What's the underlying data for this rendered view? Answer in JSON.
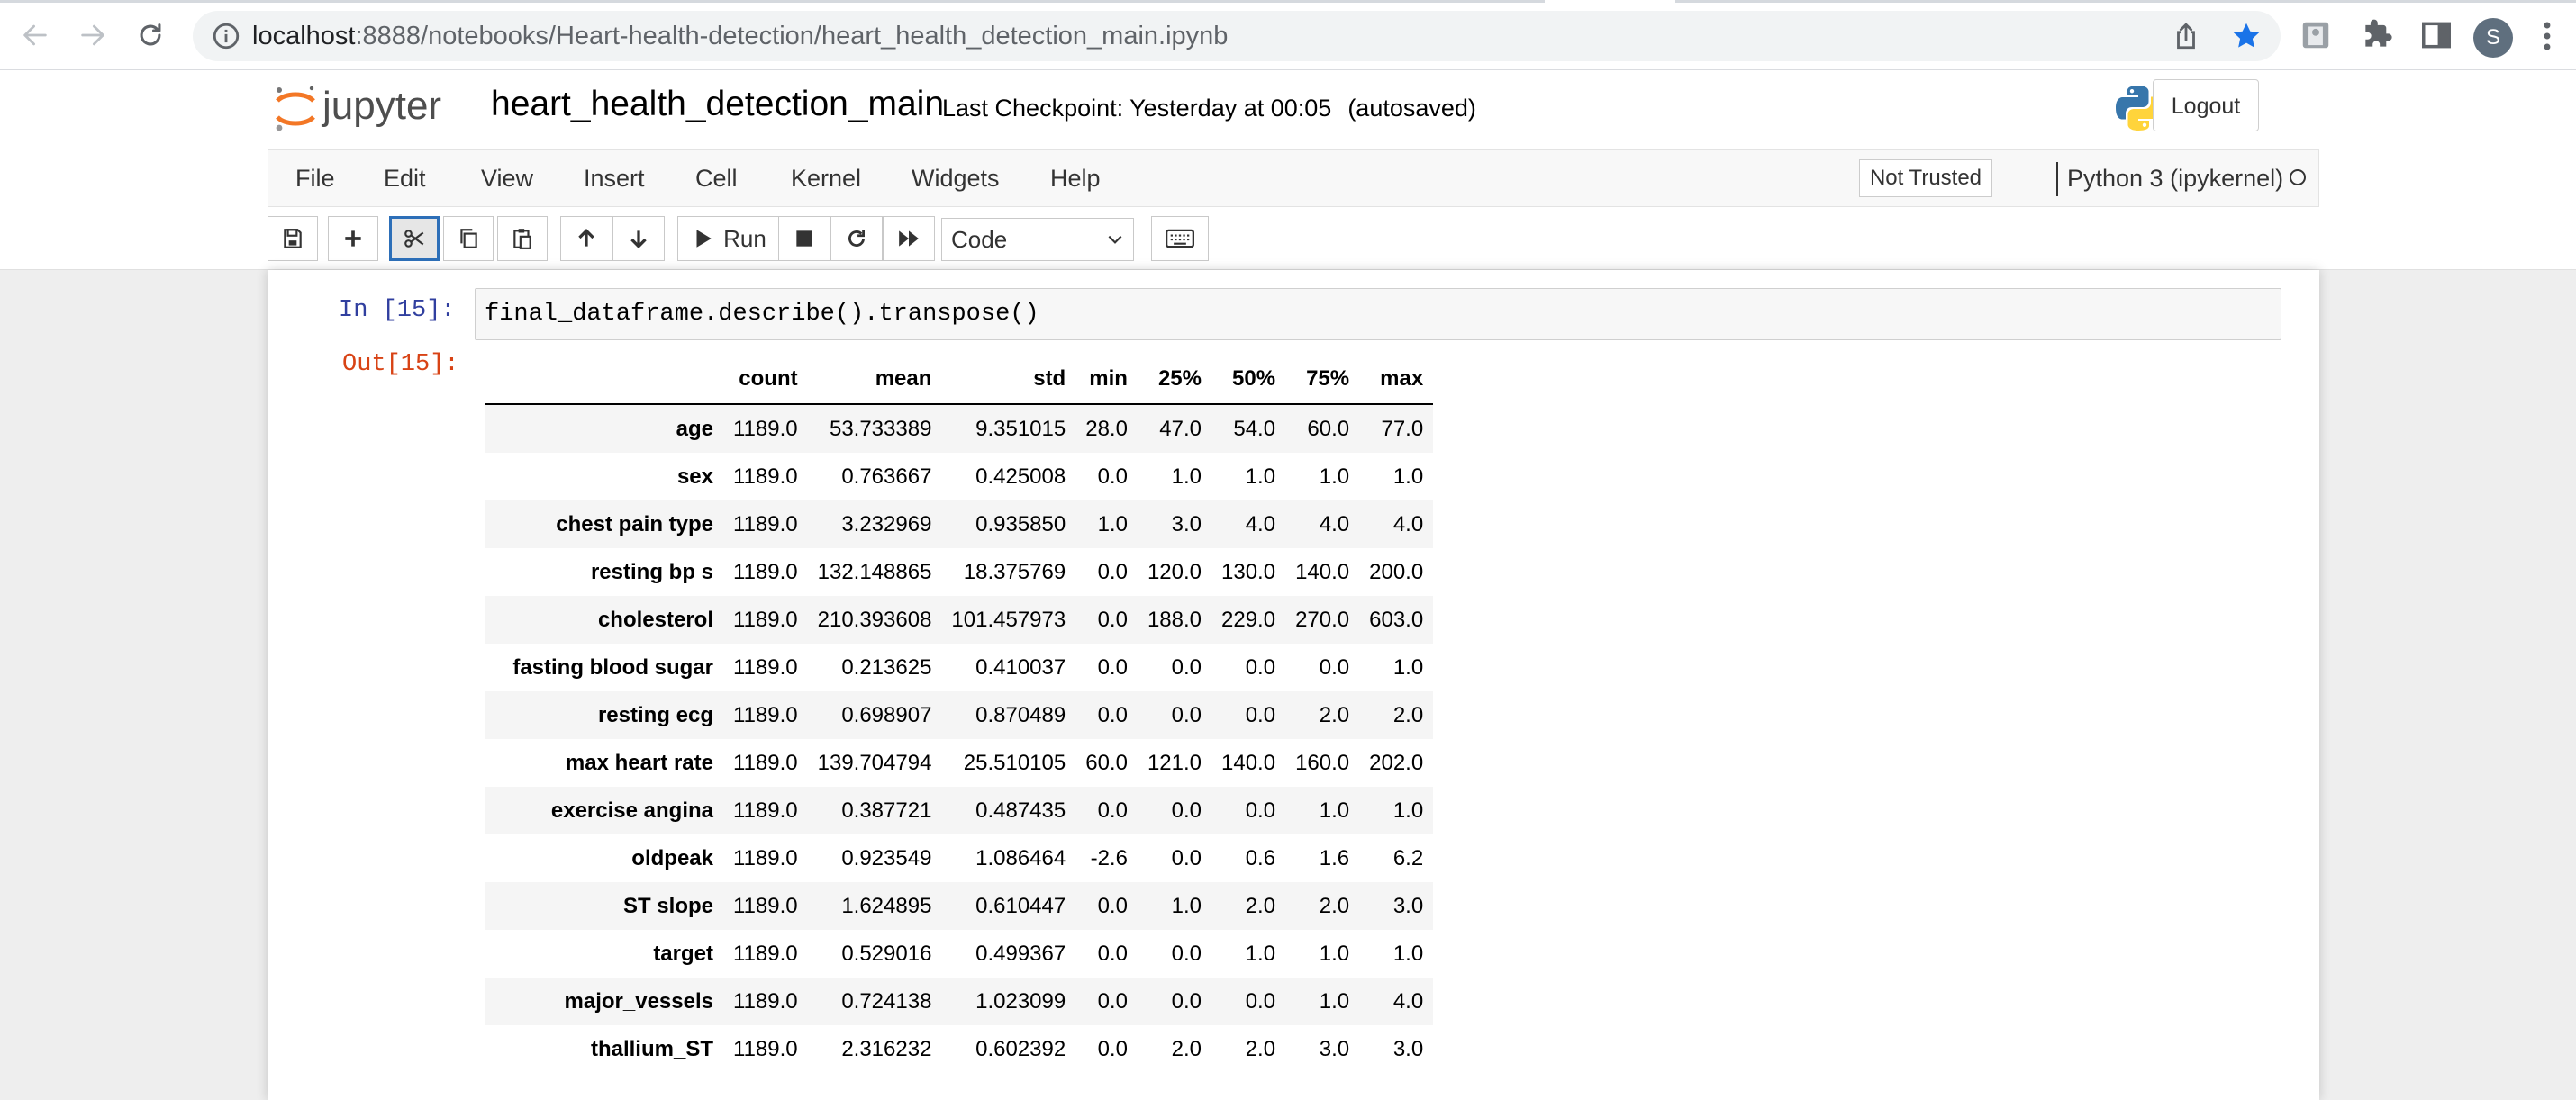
{
  "browser": {
    "url_host": "localhost",
    "url_path": ":8888/notebooks/Heart-health-detection/heart_health_detection_main.ipynb",
    "profile_initial": "S",
    "icons": [
      "back-icon",
      "forward-icon",
      "reload-icon",
      "info-icon",
      "share-icon",
      "star-icon",
      "extension-icon",
      "puzzle-icon",
      "side-panel-icon",
      "menu-icon"
    ]
  },
  "header": {
    "logo_text": "jupyter",
    "notebook_name": "heart_health_detection_main",
    "checkpoint": "Last Checkpoint: Yesterday at 00:05",
    "autosave": "(autosaved)",
    "logout_label": "Logout"
  },
  "menubar": {
    "items": [
      "File",
      "Edit",
      "View",
      "Insert",
      "Cell",
      "Kernel",
      "Widgets",
      "Help"
    ],
    "trust_label": "Not Trusted",
    "kernel_name": "Python 3 (ipykernel)"
  },
  "toolbar": {
    "run_label": "Run",
    "cell_type": "Code"
  },
  "cell": {
    "in_prompt": "In [15]:",
    "out_prompt": "Out[15]:",
    "code": "final_dataframe.describe().transpose()"
  },
  "dataframe": {
    "columns": [
      "count",
      "mean",
      "std",
      "min",
      "25%",
      "50%",
      "75%",
      "max"
    ],
    "rows": [
      {
        "label": "age",
        "values": [
          "1189.0",
          "53.733389",
          "9.351015",
          "28.0",
          "47.0",
          "54.0",
          "60.0",
          "77.0"
        ]
      },
      {
        "label": "sex",
        "values": [
          "1189.0",
          "0.763667",
          "0.425008",
          "0.0",
          "1.0",
          "1.0",
          "1.0",
          "1.0"
        ]
      },
      {
        "label": "chest pain type",
        "values": [
          "1189.0",
          "3.232969",
          "0.935850",
          "1.0",
          "3.0",
          "4.0",
          "4.0",
          "4.0"
        ]
      },
      {
        "label": "resting bp s",
        "values": [
          "1189.0",
          "132.148865",
          "18.375769",
          "0.0",
          "120.0",
          "130.0",
          "140.0",
          "200.0"
        ]
      },
      {
        "label": "cholesterol",
        "values": [
          "1189.0",
          "210.393608",
          "101.457973",
          "0.0",
          "188.0",
          "229.0",
          "270.0",
          "603.0"
        ]
      },
      {
        "label": "fasting blood sugar",
        "values": [
          "1189.0",
          "0.213625",
          "0.410037",
          "0.0",
          "0.0",
          "0.0",
          "0.0",
          "1.0"
        ]
      },
      {
        "label": "resting ecg",
        "values": [
          "1189.0",
          "0.698907",
          "0.870489",
          "0.0",
          "0.0",
          "0.0",
          "2.0",
          "2.0"
        ]
      },
      {
        "label": "max heart rate",
        "values": [
          "1189.0",
          "139.704794",
          "25.510105",
          "60.0",
          "121.0",
          "140.0",
          "160.0",
          "202.0"
        ]
      },
      {
        "label": "exercise angina",
        "values": [
          "1189.0",
          "0.387721",
          "0.487435",
          "0.0",
          "0.0",
          "0.0",
          "1.0",
          "1.0"
        ]
      },
      {
        "label": "oldpeak",
        "values": [
          "1189.0",
          "0.923549",
          "1.086464",
          "-2.6",
          "0.0",
          "0.6",
          "1.6",
          "6.2"
        ]
      },
      {
        "label": "ST slope",
        "values": [
          "1189.0",
          "1.624895",
          "0.610447",
          "0.0",
          "1.0",
          "2.0",
          "2.0",
          "3.0"
        ]
      },
      {
        "label": "target",
        "values": [
          "1189.0",
          "0.529016",
          "0.499367",
          "0.0",
          "0.0",
          "1.0",
          "1.0",
          "1.0"
        ]
      },
      {
        "label": "major_vessels",
        "values": [
          "1189.0",
          "0.724138",
          "1.023099",
          "0.0",
          "0.0",
          "0.0",
          "1.0",
          "4.0"
        ]
      },
      {
        "label": "thallium_ST",
        "values": [
          "1189.0",
          "2.316232",
          "0.602392",
          "0.0",
          "2.0",
          "2.0",
          "3.0",
          "3.0"
        ]
      }
    ]
  }
}
